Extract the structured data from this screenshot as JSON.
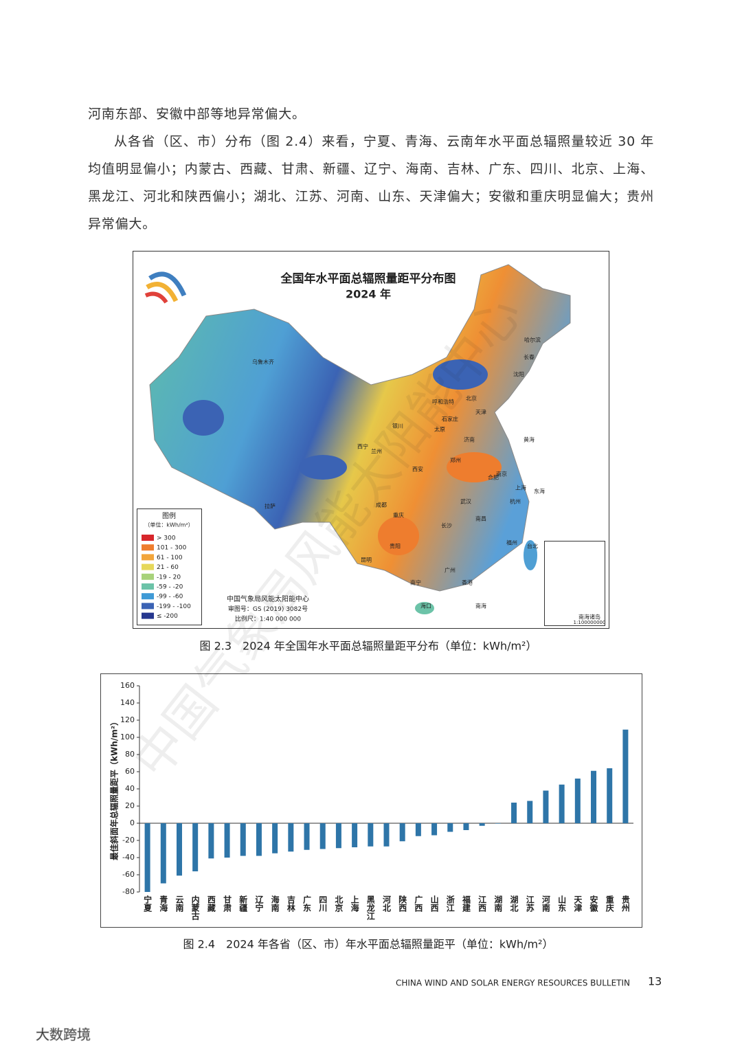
{
  "body": {
    "paragraphs": [
      "河南东部、安徽中部等地异常偏大。",
      "从各省（区、市）分布（图 2.4）来看，宁夏、青海、云南年水平面总辐照量较近 30 年均值明显偏小；内蒙古、西藏、甘肃、新疆、辽宁、海南、吉林、广东、四川、北京、上海、黑龙江、河北和陕西偏小；湖北、江苏、河南、山东、天津偏大；安徽和重庆明显偏大；贵州异常偏大。"
    ]
  },
  "figure_map": {
    "title": "全国年水平面总辐照量距平分布图",
    "year": "2024 年",
    "legend_title": "图例",
    "legend_unit": "（单位：kWh/m²）",
    "legend_items": [
      "> 300",
      "101 - 300",
      "61 - 100",
      "21 - 60",
      "-19 - 20",
      "-59 - -20",
      "-99 - -60",
      "-199 - -100",
      "≤ -200"
    ],
    "legend_colors": [
      "#d7262b",
      "#ee7d2e",
      "#f2a53b",
      "#e6d85a",
      "#a8d27a",
      "#6cc3a8",
      "#3f9ad6",
      "#3b63b4",
      "#26378f"
    ],
    "credits": [
      "中国气象局风能太阳能中心",
      "审图号：GS (2019) 3082号",
      "比例尺：1:40 000 000"
    ],
    "inset": [
      "南海诸岛",
      "1:100000000"
    ],
    "places": [
      "乌鲁木齐",
      "拉萨",
      "西宁",
      "兰州",
      "银川",
      "呼和浩特",
      "北京",
      "天津",
      "石家庄",
      "太原",
      "济南",
      "郑州",
      "西安",
      "成都",
      "重庆",
      "贵阳",
      "昆明",
      "武汉",
      "合肥",
      "南京",
      "上海",
      "杭州",
      "长沙",
      "南昌",
      "福州",
      "台北",
      "广州",
      "香港",
      "南宁",
      "海口",
      "哈尔滨",
      "长春",
      "沈阳",
      "黄海",
      "东海",
      "南海"
    ],
    "caption": "图 2.3　2024 年全国年水平面总辐照量距平分布（单位：kWh/m²）"
  },
  "chart_data": {
    "type": "bar",
    "y_label": "最佳斜面年总辐照量距平（kWh/m²）",
    "categories": [
      "宁夏",
      "青海",
      "云南",
      "内蒙古",
      "西藏",
      "甘肃",
      "新疆",
      "辽宁",
      "海南",
      "吉林",
      "广东",
      "四川",
      "北京",
      "上海",
      "黑龙江",
      "河北",
      "陕西",
      "广西",
      "山西",
      "浙江",
      "福建",
      "江西",
      "湖南",
      "湖北",
      "江苏",
      "河南",
      "山东",
      "天津",
      "安徽",
      "重庆",
      "贵州"
    ],
    "values": [
      -80,
      -70,
      -61,
      -56,
      -41,
      -40,
      -38,
      -38,
      -35,
      -33,
      -31,
      -30,
      -29,
      -28,
      -27,
      -27,
      -21,
      -15,
      -14,
      -10,
      -8,
      -3,
      -0.5,
      24,
      26,
      38,
      45,
      52,
      61,
      64,
      109
    ],
    "color": "#2e75a8",
    "ylim": [
      -80,
      160
    ],
    "yticks": [
      -80,
      -60,
      -40,
      -20,
      0,
      20,
      40,
      60,
      80,
      100,
      120,
      140,
      160
    ],
    "grid": false,
    "caption": "图 2.4　2024 年各省（区、市）年水平面总辐照量距平（单位：kWh/m²）"
  },
  "footer": {
    "running_title": "CHINA WIND AND SOLAR ENERGY RESOURCES BULLETIN",
    "page_number": "13"
  },
  "watermarks": [
    "中国气象局风能太阳能中心",
    "大数跨境"
  ]
}
